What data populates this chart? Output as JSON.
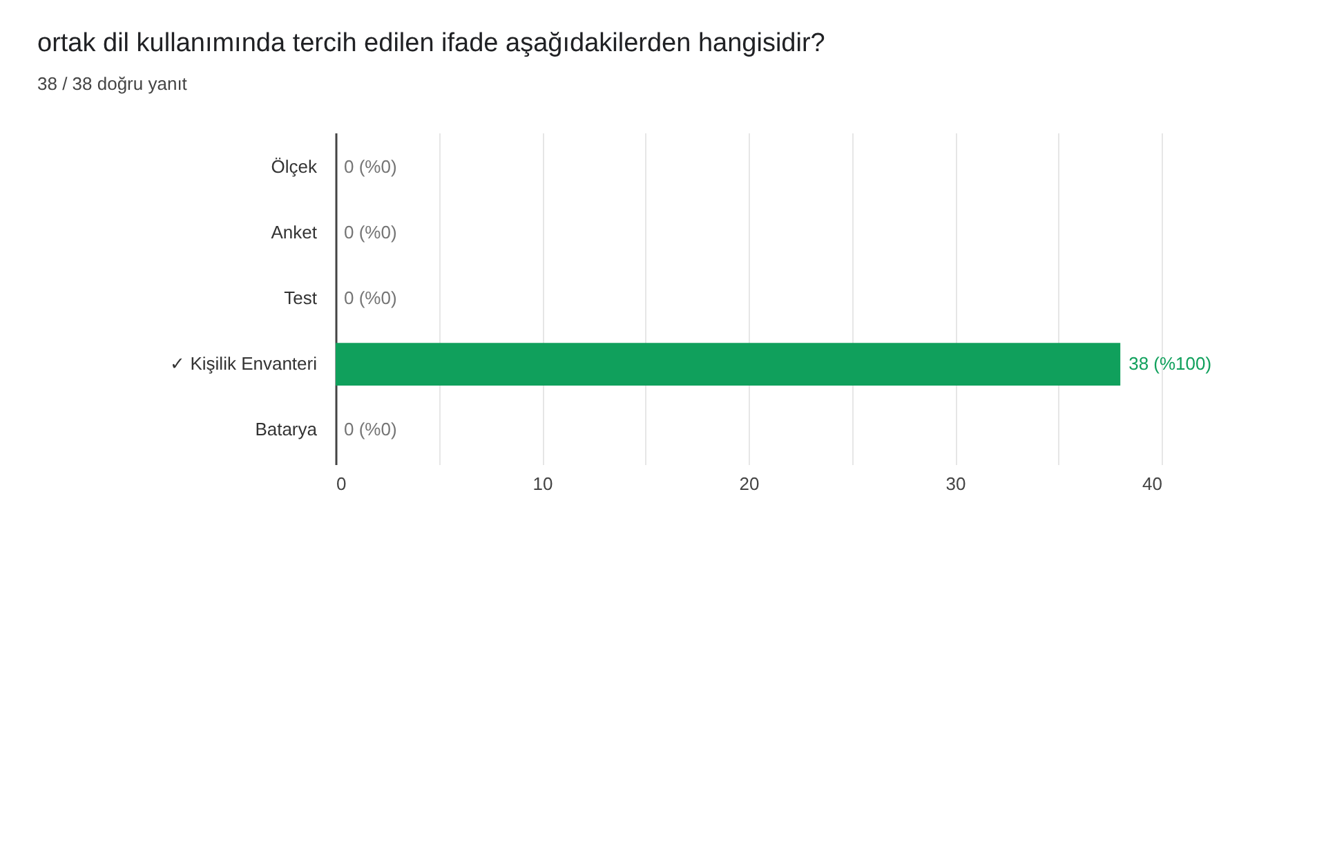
{
  "chart_data": {
    "type": "bar",
    "orientation": "horizontal",
    "title": "ortak dil kullanımında tercih edilen ifade aşağıdakilerden hangisidir?",
    "subtitle": "38 / 38 doğru yanıt",
    "categories": [
      "Ölçek",
      "Anket",
      "Test",
      "✓ Kişilik Envanteri",
      "Batarya"
    ],
    "values": [
      0,
      0,
      0,
      38,
      0
    ],
    "value_labels": [
      "0 (%0)",
      "0 (%0)",
      "0 (%0)",
      "38 (%100)",
      "0 (%0)"
    ],
    "color": "#10a05c",
    "xlim": [
      0,
      40
    ],
    "xticks": [
      0,
      {
        "value": 5,
        "label": null
      },
      10,
      {
        "value": 15,
        "label": null
      },
      20,
      {
        "value": 25,
        "label": null
      },
      30,
      {
        "value": 35,
        "label": null
      },
      40
    ],
    "grid": "x"
  }
}
